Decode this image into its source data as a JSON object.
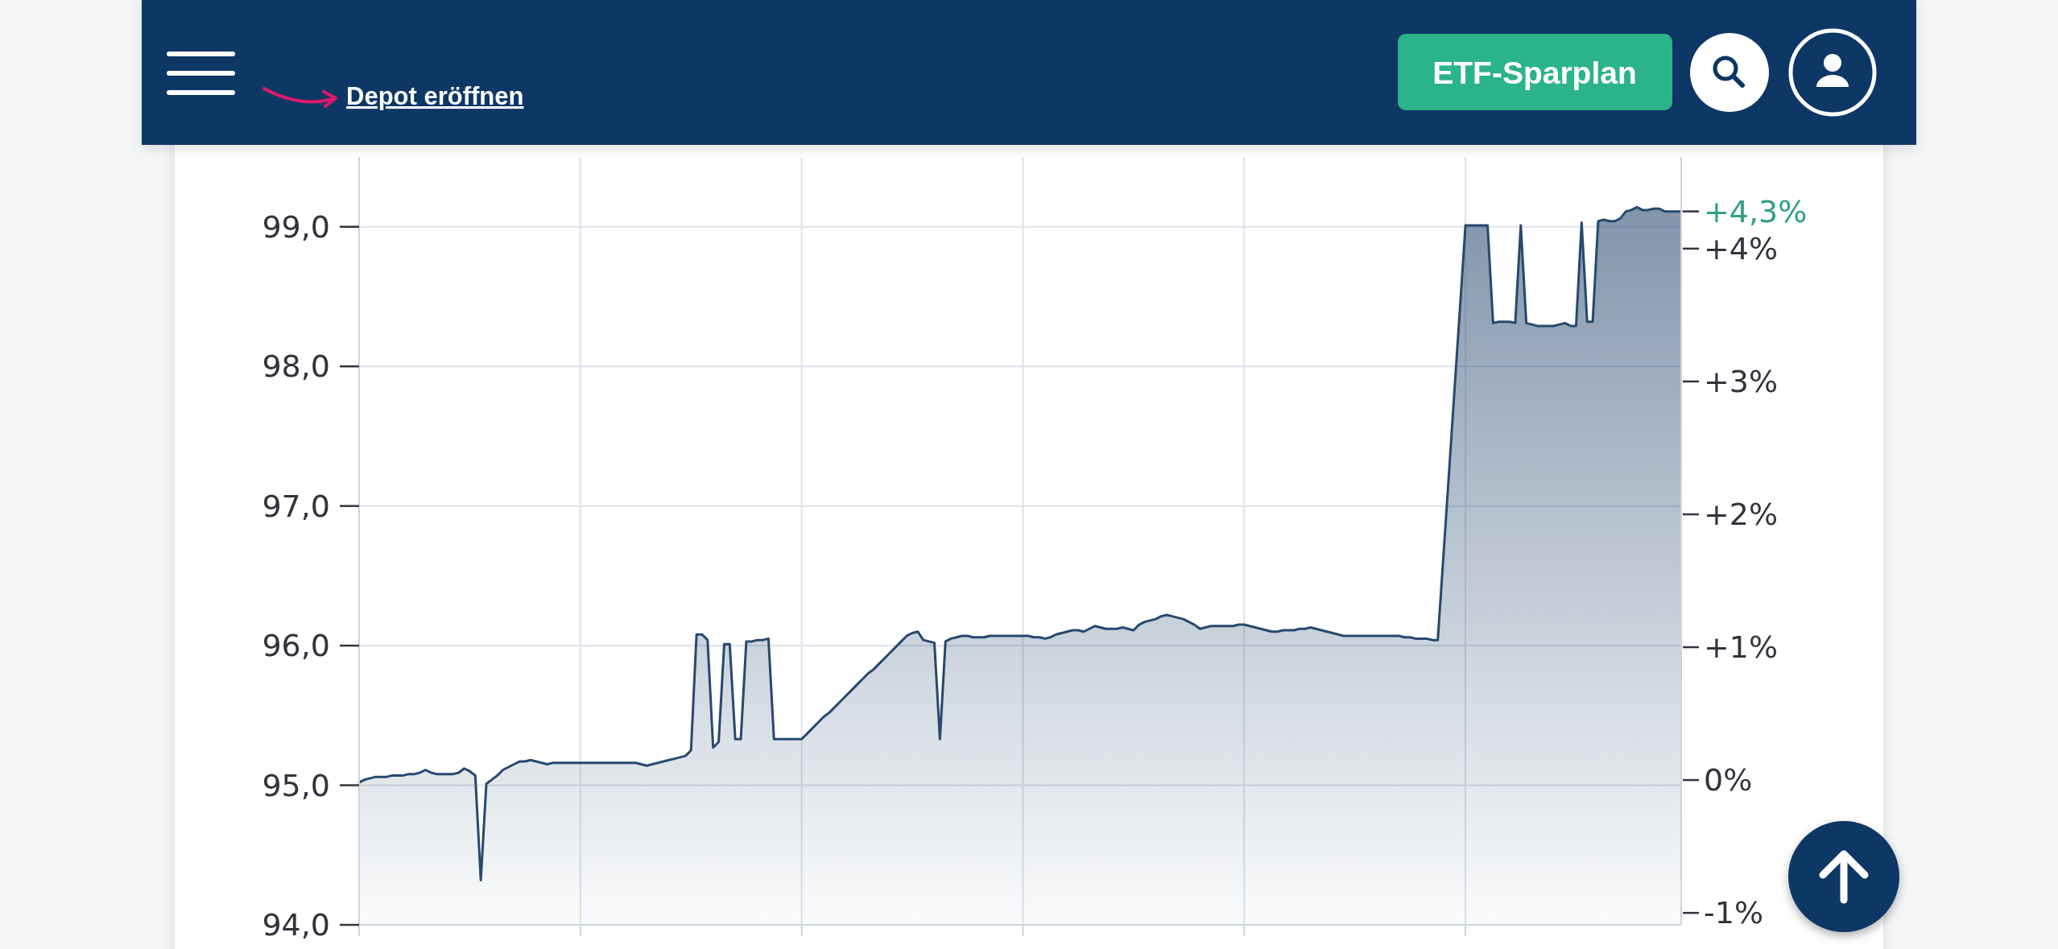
{
  "chart_data": {
    "type": "area",
    "color": "#27496f",
    "categories": [
      null,
      null,
      null,
      null,
      null,
      null,
      null,
      null,
      null,
      null,
      null,
      null,
      null,
      null,
      null,
      null,
      null,
      null,
      null,
      null,
      null,
      null,
      null,
      null,
      null,
      null,
      null,
      null,
      null,
      null,
      null,
      null,
      null,
      null,
      null,
      null,
      null,
      null,
      null,
      null,
      null,
      null,
      null,
      null,
      null,
      null,
      null,
      null,
      null,
      null,
      null,
      null,
      null,
      null,
      null,
      null,
      null,
      null,
      null,
      null,
      null,
      null,
      null,
      null,
      null,
      null,
      null,
      null,
      null,
      null,
      null,
      null,
      null,
      null,
      null,
      null,
      null,
      null,
      null,
      null,
      null,
      null,
      null,
      null,
      null,
      null,
      null,
      null,
      null,
      null,
      null,
      null,
      null,
      null,
      null,
      null,
      null,
      null,
      null,
      null,
      null,
      null,
      null,
      null,
      null,
      null,
      null,
      null,
      null,
      null,
      null,
      null,
      null,
      null,
      null,
      null,
      null,
      null,
      null,
      null,
      null,
      null,
      null,
      null,
      null,
      null,
      null,
      null,
      null,
      null,
      null,
      null,
      null,
      null,
      null,
      null,
      null,
      null,
      null,
      null,
      null,
      null,
      null,
      null,
      null,
      null,
      null,
      null,
      null,
      null,
      null,
      null,
      null,
      null,
      null,
      null,
      null,
      null,
      null,
      null,
      null,
      null,
      null,
      null,
      null,
      null,
      null,
      null,
      null,
      null,
      null,
      null,
      null,
      null,
      null,
      null,
      null,
      null,
      null,
      null,
      null,
      null,
      null,
      null,
      null,
      null,
      null,
      null,
      null,
      null,
      null,
      null,
      null,
      null,
      null,
      null,
      null,
      null,
      null,
      null,
      null,
      null,
      null,
      null,
      null,
      null,
      null,
      null,
      null,
      null,
      null,
      null,
      null,
      null,
      null,
      null,
      null,
      null,
      null,
      null,
      null,
      null,
      null,
      null,
      null,
      null,
      null,
      null,
      null,
      null,
      null,
      null,
      null,
      null,
      null,
      null,
      null,
      null,
      null,
      null
    ],
    "values": [
      95.02,
      95.04,
      95.05,
      95.06,
      95.06,
      95.06,
      95.07,
      95.07,
      95.07,
      95.08,
      95.08,
      95.09,
      95.11,
      95.09,
      95.08,
      95.08,
      95.08,
      95.08,
      95.09,
      95.12,
      95.1,
      95.07,
      94.32,
      95.01,
      95.04,
      95.07,
      95.11,
      95.13,
      95.15,
      95.17,
      95.17,
      95.18,
      95.17,
      95.16,
      95.15,
      95.16,
      95.16,
      95.16,
      95.16,
      95.16,
      95.16,
      95.16,
      95.16,
      95.16,
      95.16,
      95.16,
      95.16,
      95.16,
      95.16,
      95.16,
      95.16,
      95.15,
      95.14,
      95.15,
      95.16,
      95.17,
      95.18,
      95.19,
      95.2,
      95.21,
      95.25,
      96.08,
      96.08,
      96.04,
      95.27,
      95.31,
      96.01,
      96.01,
      95.33,
      95.33,
      96.03,
      96.03,
      96.04,
      96.04,
      96.05,
      95.33,
      95.33,
      95.33,
      95.33,
      95.33,
      95.33,
      95.37,
      95.41,
      95.45,
      95.49,
      95.52,
      95.56,
      95.6,
      95.64,
      95.68,
      95.72,
      95.76,
      95.8,
      95.83,
      95.87,
      95.91,
      95.95,
      95.99,
      96.03,
      96.07,
      96.09,
      96.1,
      96.04,
      96.03,
      96.02,
      95.33,
      96.03,
      96.05,
      96.06,
      96.07,
      96.07,
      96.06,
      96.06,
      96.06,
      96.07,
      96.07,
      96.07,
      96.07,
      96.07,
      96.07,
      96.07,
      96.07,
      96.06,
      96.06,
      96.05,
      96.06,
      96.08,
      96.09,
      96.1,
      96.11,
      96.11,
      96.1,
      96.12,
      96.14,
      96.13,
      96.12,
      96.12,
      96.12,
      96.13,
      96.12,
      96.11,
      96.15,
      96.17,
      96.18,
      96.19,
      96.21,
      96.22,
      96.21,
      96.2,
      96.19,
      96.17,
      96.15,
      96.12,
      96.13,
      96.14,
      96.14,
      96.14,
      96.14,
      96.14,
      96.15,
      96.15,
      96.14,
      96.13,
      96.12,
      96.11,
      96.1,
      96.1,
      96.11,
      96.11,
      96.11,
      96.12,
      96.12,
      96.13,
      96.12,
      96.11,
      96.1,
      96.09,
      96.08,
      96.07,
      96.07,
      96.07,
      96.07,
      96.07,
      96.07,
      96.07,
      96.07,
      96.07,
      96.07,
      96.07,
      96.06,
      96.06,
      96.05,
      96.05,
      96.05,
      96.04,
      96.04,
      96.63,
      97.22,
      97.82,
      98.41,
      99.01,
      99.01,
      99.01,
      99.01,
      99.01,
      98.31,
      98.32,
      98.32,
      98.32,
      98.31,
      99.01,
      98.31,
      98.3,
      98.29,
      98.29,
      98.29,
      98.29,
      98.3,
      98.31,
      98.29,
      98.29,
      99.03,
      98.32,
      98.32,
      99.04,
      99.05,
      99.04,
      99.04,
      99.06,
      99.11,
      99.12,
      99.14,
      99.12,
      99.12,
      99.13,
      99.13,
      99.11,
      99.11,
      99.11,
      99.11
    ],
    "ylim": [
      94,
      99.5
    ],
    "yticks": [
      {
        "value": 94,
        "label": "94,0"
      },
      {
        "value": 95,
        "label": "95,0"
      },
      {
        "value": 96,
        "label": "96,0"
      },
      {
        "value": 97,
        "label": "97,0"
      },
      {
        "value": 98,
        "label": "98,0"
      },
      {
        "value": 99,
        "label": "99,0"
      }
    ],
    "y2lim": [
      -1.09,
      4.69
    ],
    "y2ticks": [
      {
        "value": -1,
        "label": "-1%"
      },
      {
        "value": 0,
        "label": "0%"
      },
      {
        "value": 1,
        "label": "+1%"
      },
      {
        "value": 2,
        "label": "+2%"
      },
      {
        "value": 3,
        "label": "+3%"
      },
      {
        "value": 4,
        "label": "+4%"
      }
    ],
    "grid": true,
    "annotations": [
      "Depot eröffnen",
      "ETF-Sparplan",
      "+4,3%"
    ]
  }
}
